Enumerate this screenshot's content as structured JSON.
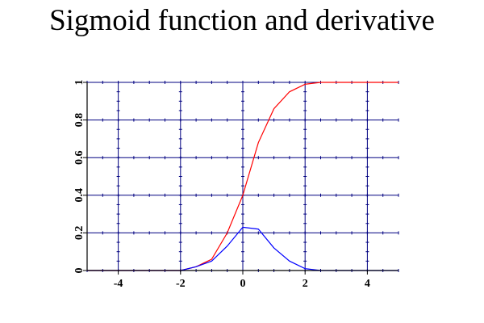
{
  "chart_data": {
    "type": "line",
    "title": "Sigmoid function and derivative",
    "xlim": [
      -5,
      5
    ],
    "ylim": [
      0,
      1
    ],
    "x_ticks": [
      -4,
      -2,
      0,
      2,
      4
    ],
    "x_tick_labels": [
      "-4",
      "-2",
      "0",
      "2",
      "4"
    ],
    "y_ticks": [
      0,
      0.2,
      0.4,
      0.6,
      0.8,
      1
    ],
    "y_tick_labels": [
      "0",
      "0.2",
      "0.4",
      "0.6",
      "0.8",
      "1"
    ],
    "grid": true,
    "grid_color": "#000080",
    "x": [
      -5,
      -4.5,
      -4,
      -3.5,
      -3,
      -2.5,
      -2,
      -1.5,
      -1,
      -0.5,
      0,
      0.5,
      1,
      1.5,
      2,
      2.5,
      3,
      3.5,
      4,
      4.5,
      5
    ],
    "series": [
      {
        "color": "#ff0000",
        "values": [
          0.0,
          0.0,
          0.0,
          0.0,
          0.0,
          0.0,
          0.0,
          0.02,
          0.06,
          0.2,
          0.4,
          0.68,
          0.86,
          0.95,
          0.99,
          1.0,
          1.0,
          1.0,
          1.0,
          1.0,
          1.0
        ]
      },
      {
        "color": "#0000ff",
        "values": [
          0.0,
          0.0,
          0.0,
          0.0,
          0.0,
          0.0,
          0.0,
          0.02,
          0.05,
          0.13,
          0.23,
          0.22,
          0.12,
          0.05,
          0.01,
          0.0,
          0.0,
          0.0,
          0.0,
          0.0,
          0.0
        ]
      }
    ]
  }
}
